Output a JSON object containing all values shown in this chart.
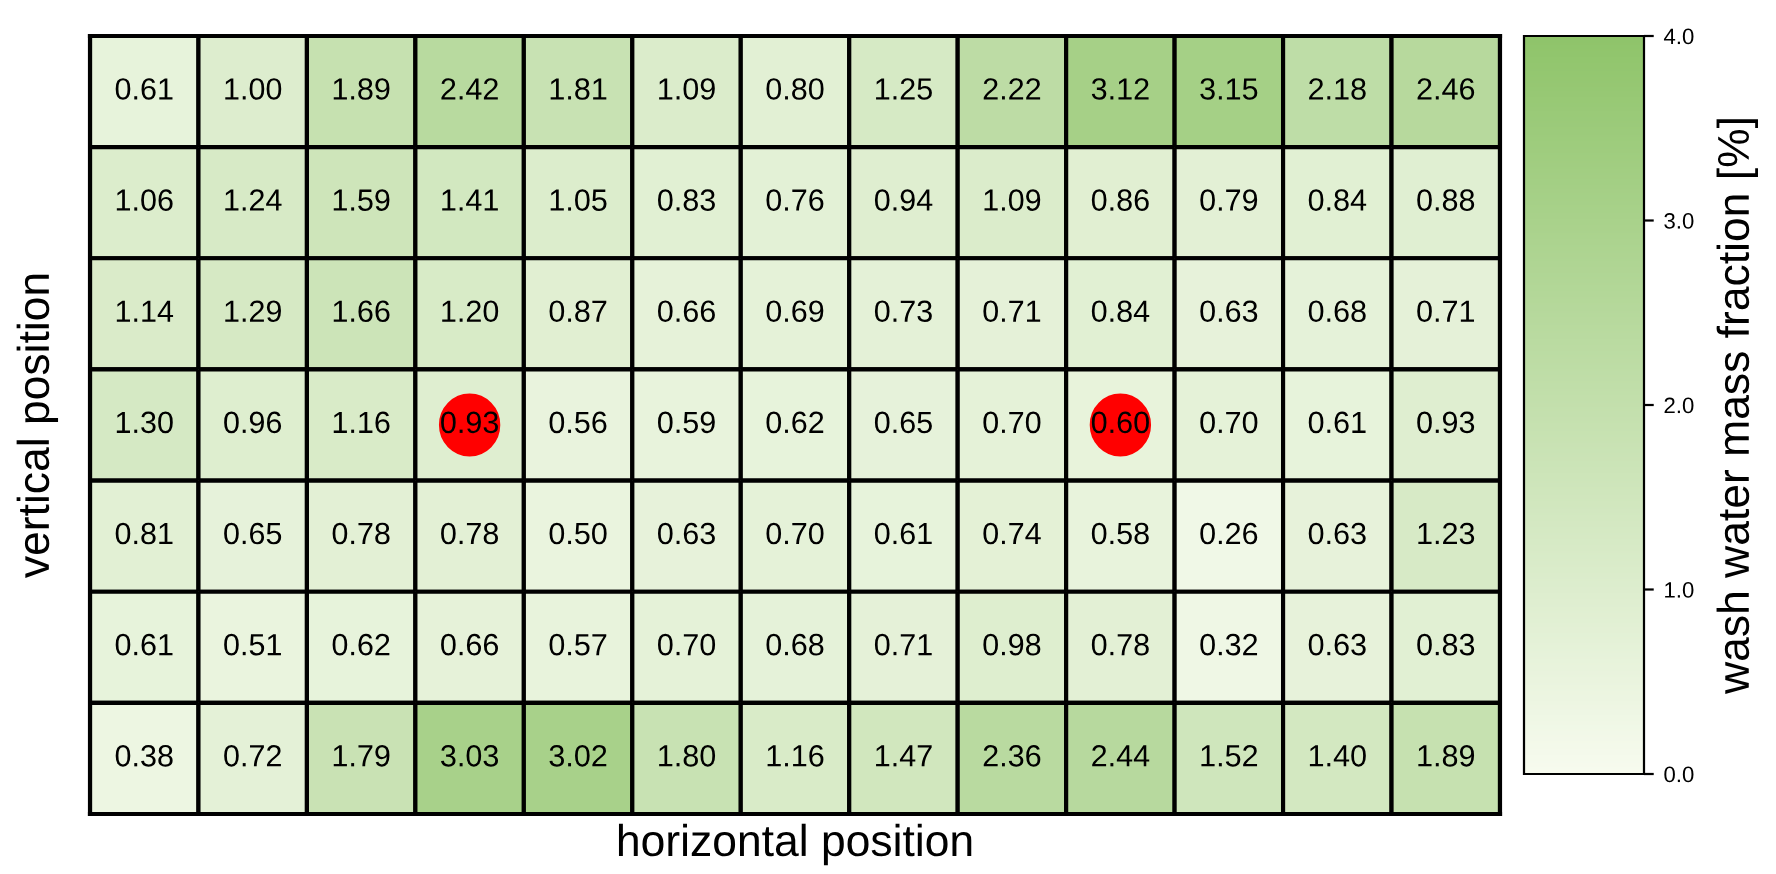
{
  "chart_data": {
    "type": "heatmap",
    "xlabel": "horizontal position",
    "ylabel": "vertical position",
    "clabel": "wash water mass fraction [%]",
    "categories": [
      null,
      null,
      null,
      null,
      null,
      null,
      null,
      null,
      null,
      null,
      null,
      null,
      null
    ],
    "y_categories": [
      null,
      null,
      null,
      null,
      null,
      null,
      null
    ],
    "cells": [
      [
        0.61,
        1.0,
        1.89,
        2.42,
        1.81,
        1.09,
        0.8,
        1.25,
        2.22,
        3.12,
        3.15,
        2.18,
        2.46
      ],
      [
        1.06,
        1.24,
        1.59,
        1.41,
        1.05,
        0.83,
        0.76,
        0.94,
        1.09,
        0.86,
        0.79,
        0.84,
        0.88
      ],
      [
        1.14,
        1.29,
        1.66,
        1.2,
        0.87,
        0.66,
        0.69,
        0.73,
        0.71,
        0.84,
        0.63,
        0.68,
        0.71
      ],
      [
        1.3,
        0.96,
        1.16,
        0.93,
        0.56,
        0.59,
        0.62,
        0.65,
        0.7,
        0.6,
        0.7,
        0.61,
        0.93
      ],
      [
        0.81,
        0.65,
        0.78,
        0.78,
        0.5,
        0.63,
        0.7,
        0.61,
        0.74,
        0.58,
        0.26,
        0.63,
        1.23
      ],
      [
        0.61,
        0.51,
        0.62,
        0.66,
        0.57,
        0.7,
        0.68,
        0.71,
        0.98,
        0.78,
        0.32,
        0.63,
        0.83
      ],
      [
        0.38,
        0.72,
        1.79,
        3.03,
        3.02,
        1.8,
        1.16,
        1.47,
        2.36,
        2.44,
        1.52,
        1.4,
        1.89
      ]
    ],
    "cell_labels": [
      [
        "0.61",
        "1.00",
        "1.89",
        "2.42",
        "1.81",
        "1.09",
        "0.80",
        "1.25",
        "2.22",
        "3.12",
        "3.15",
        "2.18",
        "2.46"
      ],
      [
        "1.06",
        "1.24",
        "1.59",
        "1.41",
        "1.05",
        "0.83",
        "0.76",
        "0.94",
        "1.09",
        "0.86",
        "0.79",
        "0.84",
        "0.88"
      ],
      [
        "1.14",
        "1.29",
        "1.66",
        "1.20",
        "0.87",
        "0.66",
        "0.69",
        "0.73",
        "0.71",
        "0.84",
        "0.63",
        "0.68",
        "0.71"
      ],
      [
        "1.30",
        "0.96",
        "1.16",
        "0.93",
        "0.56",
        "0.59",
        "0.62",
        "0.65",
        "0.70",
        "0.60",
        "0.70",
        "0.61",
        "0.93"
      ],
      [
        "0.81",
        "0.65",
        "0.78",
        "0.78",
        "0.50",
        "0.63",
        "0.70",
        "0.61",
        "0.74",
        "0.58",
        "0.26",
        "0.63",
        "1.23"
      ],
      [
        "0.61",
        "0.51",
        "0.62",
        "0.66",
        "0.57",
        "0.70",
        "0.68",
        "0.71",
        "0.98",
        "0.78",
        "0.32",
        "0.63",
        "0.83"
      ],
      [
        "0.38",
        "0.72",
        "1.79",
        "3.03",
        "3.02",
        "1.80",
        "1.16",
        "1.47",
        "2.36",
        "2.44",
        "1.52",
        "1.40",
        "1.89"
      ]
    ],
    "clim": [
      0,
      4
    ],
    "cticks": [
      {
        "value": 0,
        "label": "0.0"
      },
      {
        "value": 1,
        "label": "1.0"
      },
      {
        "value": 2,
        "label": "2.0"
      },
      {
        "value": 3,
        "label": "3.0"
      },
      {
        "value": 4,
        "label": "4.0"
      }
    ]
  }
}
